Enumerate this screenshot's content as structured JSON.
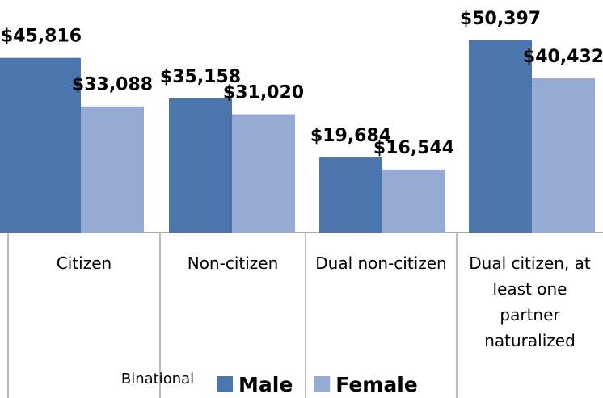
{
  "chart_data": {
    "type": "bar",
    "categories": [
      "Citizen",
      "Non-citizen",
      "Dual non-citizen",
      "Dual citizen, at least one partner naturalized"
    ],
    "xlabel": "Binational",
    "series": [
      {
        "name": "Male",
        "color": "#4a76ad",
        "values": [
          45816,
          35158,
          19684,
          50397
        ],
        "value_labels": [
          "$45,816",
          "$35,158",
          "$19,684",
          "$50,397"
        ]
      },
      {
        "name": "Female",
        "color": "#95abd3",
        "values": [
          33088,
          31020,
          16544,
          40432
        ],
        "value_labels": [
          "$33,088",
          "$31,020",
          "$16,544",
          "$40,432"
        ]
      }
    ]
  }
}
